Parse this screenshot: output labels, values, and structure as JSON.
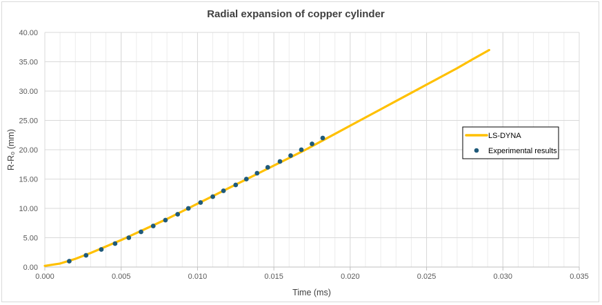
{
  "chart_data": {
    "type": "line",
    "title": "Radial expansion of copper cylinder",
    "xlabel": "Time (ms)",
    "ylabel": "R-R₀  (mm)",
    "xlim": [
      0,
      0.035
    ],
    "ylim": [
      0,
      40
    ],
    "x_ticks": [
      "0.000",
      "0.005",
      "0.010",
      "0.015",
      "0.020",
      "0.025",
      "0.030",
      "0.035"
    ],
    "y_ticks": [
      "0.00",
      "5.00",
      "10.00",
      "15.00",
      "20.00",
      "25.00",
      "30.00",
      "35.00",
      "40.00"
    ],
    "grid": true,
    "legend_position": "right",
    "series": [
      {
        "name": "LS-DYNA",
        "kind": "line",
        "color": "#ffc000",
        "x": [
          0.0,
          0.001,
          0.002,
          0.003,
          0.004,
          0.005,
          0.006,
          0.007,
          0.008,
          0.009,
          0.01,
          0.011,
          0.012,
          0.013,
          0.014,
          0.015,
          0.016,
          0.017,
          0.018,
          0.019,
          0.02,
          0.021,
          0.022,
          0.023,
          0.024,
          0.025,
          0.026,
          0.027,
          0.028,
          0.0291
        ],
        "y": [
          0.2,
          0.6,
          1.4,
          2.4,
          3.5,
          4.6,
          5.8,
          7.0,
          8.2,
          9.5,
          10.8,
          12.1,
          13.4,
          14.7,
          16.0,
          17.3,
          18.6,
          19.9,
          21.3,
          22.7,
          24.1,
          25.5,
          26.9,
          28.3,
          29.7,
          31.1,
          32.5,
          33.9,
          35.4,
          37.0
        ]
      },
      {
        "name": "Experimental results",
        "kind": "scatter",
        "color": "#1f5a7a",
        "x": [
          0.0016,
          0.0027,
          0.0037,
          0.0046,
          0.0055,
          0.0063,
          0.0071,
          0.0079,
          0.0087,
          0.0094,
          0.0102,
          0.011,
          0.0117,
          0.0125,
          0.0132,
          0.0139,
          0.0146,
          0.0154,
          0.0161,
          0.0168,
          0.0175,
          0.0182
        ],
        "y": [
          1.0,
          2.0,
          3.0,
          4.0,
          5.0,
          6.0,
          7.0,
          8.0,
          9.0,
          10.0,
          11.0,
          12.0,
          13.0,
          14.0,
          15.0,
          16.0,
          17.0,
          18.0,
          19.0,
          20.0,
          21.0,
          22.0
        ]
      }
    ],
    "colors": {
      "grid": "#d9d9d9",
      "axis": "#bfbfbf",
      "text": "#595959"
    }
  }
}
